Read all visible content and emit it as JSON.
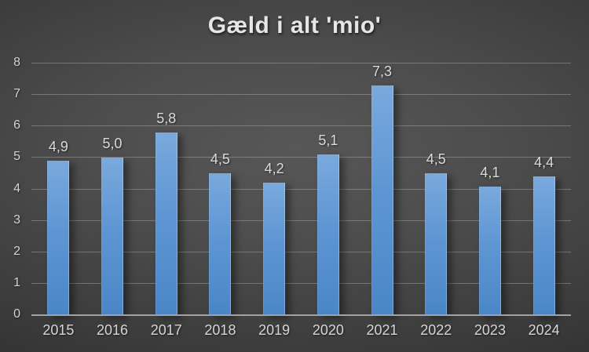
{
  "title": "Gæld i alt 'mio'",
  "colors": {
    "background_center": "#4d4d4d",
    "background_edge": "#1d1d1d",
    "bar_top": "#7aa9dd",
    "bar_bottom": "#4a86c7",
    "gridline": "#8f8f8f",
    "axis_line": "#a2a2a2",
    "label_text": "#d9d9d9",
    "title_text": "#e6e6e6"
  },
  "chart_data": {
    "type": "bar",
    "title": "Gæld i alt 'mio'",
    "categories": [
      "2015",
      "2016",
      "2017",
      "2018",
      "2019",
      "2020",
      "2021",
      "2022",
      "2023",
      "2024"
    ],
    "values": [
      4.9,
      5.0,
      5.8,
      4.5,
      4.2,
      5.1,
      7.3,
      4.5,
      4.1,
      4.4
    ],
    "value_labels": [
      "4,9",
      "5,0",
      "5,8",
      "4,5",
      "4,2",
      "5,1",
      "7,3",
      "4,5",
      "4,1",
      "4,4"
    ],
    "xlabel": "",
    "ylabel": "",
    "ylim": [
      0,
      8
    ],
    "y_ticks": [
      0,
      1,
      2,
      3,
      4,
      5,
      6,
      7,
      8
    ],
    "grid": true,
    "legend_position": "none",
    "decimal_separator": ","
  }
}
